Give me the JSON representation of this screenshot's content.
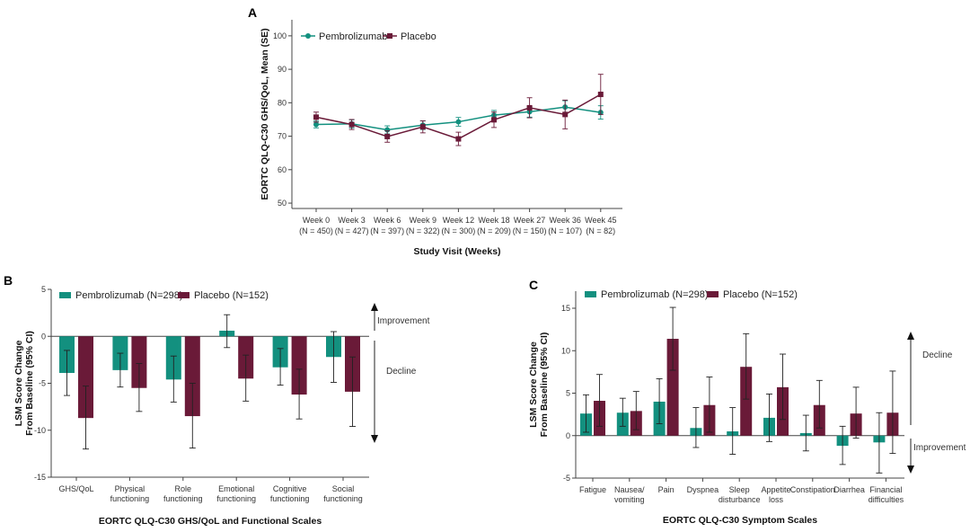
{
  "colors": {
    "pembrolizumab": "#13907f",
    "placebo": "#6a1a38",
    "axis": "#444444"
  },
  "chart_data": [
    {
      "panel": "A",
      "type": "line",
      "xlabel": "Study Visit (Weeks)",
      "ylabel": "EORTC QLQ-C30 GHS/QoL, Mean (SE)",
      "ylim": [
        48.4,
        104.8
      ],
      "yticks": [
        50,
        60,
        70,
        80,
        90,
        100
      ],
      "categories": [
        "Week 0",
        "Week 3",
        "Week 6",
        "Week 9",
        "Week 12",
        "Week 18",
        "Week 27",
        "Week 36",
        "Week 45"
      ],
      "category_n": [
        "(N = 450)",
        "(N = 427)",
        "(N = 397)",
        "(N = 322)",
        "(N = 300)",
        "(N = 209)",
        "(N = 150)",
        "(N = 107)",
        "(N = 82)"
      ],
      "legend_position": "top-left",
      "series": [
        {
          "name": "Pembrolizumab",
          "marker": "circle",
          "values": [
            73.5,
            73.7,
            71.9,
            73.3,
            74.3,
            76.3,
            77.3,
            78.7,
            77.1
          ],
          "se": [
            1.0,
            1.2,
            1.2,
            1.3,
            1.3,
            1.4,
            1.6,
            1.9,
            2.0
          ]
        },
        {
          "name": "Placebo",
          "marker": "square",
          "values": [
            75.7,
            73.5,
            69.9,
            72.8,
            69.2,
            74.9,
            78.5,
            76.5,
            82.5
          ],
          "se": [
            1.5,
            1.5,
            1.7,
            1.8,
            2.0,
            2.3,
            3.0,
            4.3,
            6.0
          ]
        }
      ]
    },
    {
      "panel": "B",
      "type": "bar",
      "xlabel": "EORTC QLQ-C30 GHS/QoL and Functional Scales",
      "ylabel": [
        "LSM Score Change",
        "From Baseline (95% CI)"
      ],
      "ylim": [
        -15,
        5
      ],
      "yticks": [
        5,
        0,
        -5,
        -10,
        -15
      ],
      "categories": [
        [
          "GHS/QoL"
        ],
        [
          "Physical",
          "functioning"
        ],
        [
          "Role",
          "functioning"
        ],
        [
          "Emotional",
          "functioning"
        ],
        [
          "Cognitive",
          "functioning"
        ],
        [
          "Social",
          "functioning"
        ]
      ],
      "legend_position": "top",
      "annotations": {
        "up": "Improvement",
        "down": "Decline"
      },
      "series": [
        {
          "name": "Pembrolizumab (N=298)",
          "values": [
            -3.9,
            -3.6,
            -4.6,
            0.6,
            -3.3,
            -2.2
          ],
          "ci_low": [
            -6.3,
            -5.4,
            -7.0,
            -1.2,
            -5.2,
            -4.9
          ],
          "ci_high": [
            -1.5,
            -1.8,
            -2.1,
            2.3,
            -1.3,
            0.5
          ]
        },
        {
          "name": "Placebo (N=152)",
          "values": [
            -8.7,
            -5.5,
            -8.5,
            -4.5,
            -6.2,
            -5.9
          ],
          "ci_low": [
            -12.0,
            -8.0,
            -11.9,
            -6.9,
            -8.8,
            -9.6
          ],
          "ci_high": [
            -5.3,
            -2.9,
            -5.0,
            -2.0,
            -3.5,
            -2.2
          ]
        }
      ]
    },
    {
      "panel": "C",
      "type": "bar",
      "xlabel": "EORTC QLQ-C30 Symptom Scales",
      "ylabel": [
        "LSM Score Change",
        "From Baseline (95% CI)"
      ],
      "ylim": [
        -5,
        17
      ],
      "yticks": [
        15,
        10,
        5,
        0,
        -5
      ],
      "categories": [
        [
          "Fatigue"
        ],
        [
          "Nausea/",
          "vomiting"
        ],
        [
          "Pain"
        ],
        [
          "Dyspnea"
        ],
        [
          "Sleep",
          "disturbance"
        ],
        [
          "Appetite",
          "loss"
        ],
        [
          "Constipation"
        ],
        [
          "Diarrhea"
        ],
        [
          "Financial",
          "difficulties"
        ]
      ],
      "legend_position": "top",
      "annotations": {
        "up": "Decline",
        "down": "Improvement"
      },
      "series": [
        {
          "name": "Pembrolizumab (N=298)",
          "values": [
            2.6,
            2.7,
            4.0,
            0.9,
            0.5,
            2.1,
            0.3,
            -1.2,
            -0.8
          ],
          "ci_low": [
            0.4,
            1.1,
            1.4,
            -1.4,
            -2.2,
            -0.7,
            -1.8,
            -3.4,
            -4.4
          ],
          "ci_high": [
            4.8,
            4.4,
            6.7,
            3.3,
            3.3,
            4.9,
            2.4,
            1.1,
            2.7
          ]
        },
        {
          "name": "Placebo (N=152)",
          "values": [
            4.1,
            2.9,
            11.4,
            3.6,
            8.1,
            5.7,
            3.6,
            2.6,
            2.7
          ],
          "ci_low": [
            1.1,
            0.7,
            7.7,
            0.4,
            4.3,
            1.9,
            0.9,
            -0.3,
            -2.1
          ],
          "ci_high": [
            7.2,
            5.2,
            15.1,
            6.9,
            12.0,
            9.6,
            6.5,
            5.7,
            7.6
          ]
        }
      ]
    }
  ]
}
